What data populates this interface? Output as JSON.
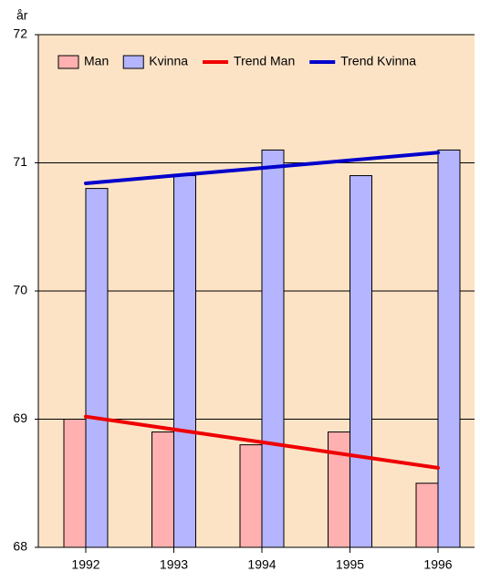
{
  "chart_data": {
    "type": "bar",
    "y_unit_label": "år",
    "categories": [
      "1992",
      "1993",
      "1994",
      "1995",
      "1996"
    ],
    "series": [
      {
        "name": "Man",
        "type": "bar",
        "color": "#ffb0b0",
        "values": [
          69.0,
          68.9,
          68.8,
          68.9,
          68.5
        ]
      },
      {
        "name": "Kvinna",
        "type": "bar",
        "color": "#b4b4ff",
        "values": [
          70.8,
          70.9,
          71.1,
          70.9,
          71.1
        ]
      },
      {
        "name": "Trend Man",
        "type": "line",
        "color": "#ee0000",
        "values": [
          69.02,
          68.92,
          68.82,
          68.72,
          68.62
        ]
      },
      {
        "name": "Trend Kvinna",
        "type": "line",
        "color": "#0000cc",
        "values": [
          70.84,
          70.9,
          70.96,
          71.02,
          71.08
        ]
      }
    ],
    "ylim": [
      68,
      72
    ],
    "yticks": [
      68,
      69,
      70,
      71,
      72
    ],
    "grid": true,
    "legend": "top"
  }
}
